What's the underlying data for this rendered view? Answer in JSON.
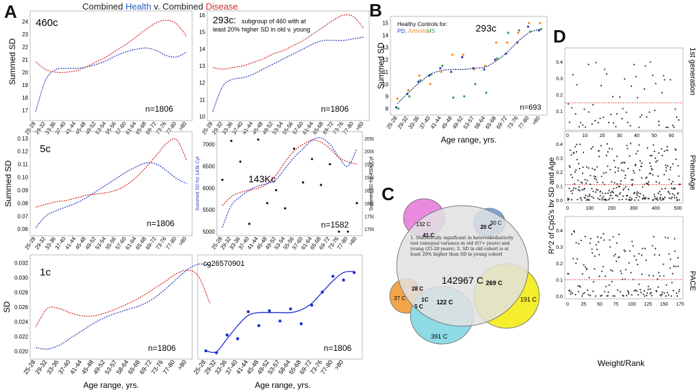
{
  "title": {
    "prefix": "Combined ",
    "health": "Health",
    "mid": " v. Combined ",
    "disease": "Disease"
  },
  "colors": {
    "health": "#2b3fbf",
    "disease": "#d42a2a",
    "ms": "#3aa040",
    "arthritis": "#f08a1c"
  },
  "letters": {
    "a": "A",
    "b": "B",
    "c": "C",
    "d": "D"
  },
  "age_ticks_a": [
    "25-28",
    "29-32",
    "33-36",
    "37-40",
    "41-44",
    "45-48",
    "49-52",
    "53-54",
    "55-56",
    "57-60",
    "61-64",
    "65-68",
    "69-72",
    "73-76",
    "77-80",
    ">80"
  ],
  "age_ticks_b": [
    "25-28",
    "29-32",
    "33-36",
    "37-40",
    "41-44",
    "45-48",
    "49-52",
    "53-57",
    "58-64",
    "65-68",
    "69-72",
    "73-76",
    "77-80",
    ">80"
  ],
  "panels": {
    "p460c": {
      "label": "460c",
      "ylabel": "Summed SD",
      "n": "n=1806",
      "yticks": [
        "17",
        "18",
        "19",
        "20",
        "21",
        "22",
        "23",
        "24"
      ]
    },
    "p293c": {
      "label": "293c:",
      "note1": "subgroup of 460 with at",
      "note2": "least 20% higher SD in old v. young",
      "n": "n=1806",
      "yticks": [
        "10",
        "11",
        "12",
        "13",
        "14",
        "15",
        "16"
      ]
    },
    "p5c": {
      "label": "5c",
      "ylabel": "Summed SD",
      "n": "n=1806",
      "yticks": [
        "0.06",
        "0.07",
        "0.08",
        "0.09",
        "0.10",
        "0.11",
        "0.12",
        "0.13"
      ]
    },
    "p143k": {
      "label": "143Kc",
      "ylabel_left": "Summed SD for 143k Cyt",
      "ylabel_right": "Summed SD for 450k Cyt",
      "n": "n=1582",
      "yticks_left": [
        "5000",
        "5500",
        "6000",
        "6500",
        "7000"
      ],
      "yticks_right": [
        "17000",
        "17500",
        "18000",
        "18500",
        "19000",
        "19500",
        "20000",
        "20500"
      ]
    },
    "p1c": {
      "label": "1c",
      "ylabel": "SD",
      "n": "n=1806",
      "xlabel": "Age range, yrs.",
      "yticks": [
        "0.020",
        "0.022",
        "0.024",
        "0.026",
        "0.028",
        "0.030",
        "0.032"
      ]
    },
    "pcg": {
      "label": "cg26570901",
      "n": "n=1806",
      "xlabel": "Age range, yrs."
    },
    "pB": {
      "label": "293c",
      "ylabel": "Summed SD",
      "xlabel": "Age range, yrs.",
      "n": "n=693",
      "legend_title": "Healthy Controls for:",
      "legend_pd": "PD,",
      "legend_arthritis": "Arthritis,",
      "legend_ms": "MS",
      "yticks": [
        "8",
        "9",
        "10",
        "11",
        "12",
        "13",
        "14",
        "15"
      ]
    }
  },
  "chart_data": [
    {
      "type": "line",
      "panel": "460c",
      "ylim": [
        16.5,
        24.5
      ],
      "series": [
        {
          "name": "Health",
          "values": [
            16.9,
            19.4,
            20.2,
            20.3,
            20.3,
            20.4,
            20.6,
            20.9,
            21.3,
            21.6,
            21.8,
            21.9,
            21.7,
            21.3,
            21.2,
            21.6
          ]
        },
        {
          "name": "Disease",
          "values": [
            20.8,
            20.2,
            20.0,
            20.0,
            20.1,
            20.4,
            20.8,
            21.2,
            21.7,
            22.2,
            22.8,
            23.4,
            23.9,
            24.1,
            23.8,
            22.8
          ]
        }
      ]
    },
    {
      "type": "line",
      "panel": "293c",
      "ylim": [
        10,
        16
      ],
      "series": [
        {
          "name": "Health",
          "values": [
            10.3,
            11.8,
            12.2,
            12.3,
            12.5,
            12.8,
            13.1,
            13.4,
            13.7,
            14.0,
            14.3,
            14.5,
            14.5,
            14.5,
            14.6,
            14.7
          ]
        },
        {
          "name": "Disease",
          "values": [
            12.9,
            12.8,
            12.9,
            13.0,
            13.2,
            13.4,
            13.7,
            13.9,
            14.2,
            14.5,
            14.9,
            15.3,
            15.7,
            16.0,
            15.9,
            15.2
          ]
        }
      ]
    },
    {
      "type": "line",
      "panel": "5c",
      "ylim": [
        0.058,
        0.132
      ],
      "series": [
        {
          "name": "Health",
          "values": [
            0.061,
            0.07,
            0.074,
            0.077,
            0.08,
            0.084,
            0.089,
            0.094,
            0.099,
            0.104,
            0.108,
            0.111,
            0.11,
            0.105,
            0.099,
            0.095
          ]
        },
        {
          "name": "Disease",
          "values": [
            0.077,
            0.079,
            0.081,
            0.082,
            0.084,
            0.086,
            0.087,
            0.088,
            0.09,
            0.094,
            0.1,
            0.108,
            0.117,
            0.126,
            0.129,
            0.113
          ]
        }
      ]
    },
    {
      "type": "line",
      "panel": "143Kc",
      "ylim": [
        5000,
        7200
      ],
      "series": [
        {
          "name": "Health",
          "values": [
            5100,
            5600,
            5800,
            5950,
            6050,
            6100,
            6200,
            6450,
            6700,
            6900,
            7100,
            7150,
            7000,
            6700,
            6500,
            6900
          ]
        },
        {
          "name": "Disease",
          "values": [
            5600,
            5800,
            5900,
            5950,
            6000,
            6100,
            6300,
            6600,
            6850,
            7000,
            7100,
            7050,
            6900,
            6700,
            6600,
            6550
          ]
        }
      ],
      "scatter_right": {
        "ylim": [
          16900,
          20600
        ],
        "values": [
          18900,
          20400,
          19600,
          17200,
          20450,
          18000,
          18500,
          17800,
          20100,
          18800,
          19700,
          18700,
          19500,
          16900,
          16900,
          18000
        ]
      }
    },
    {
      "type": "line",
      "panel": "1c",
      "ylim": [
        0.0195,
        0.0325
      ],
      "series": [
        {
          "name": "Health",
          "values": [
            0.0205,
            0.0203,
            0.0208,
            0.0218,
            0.0228,
            0.0238,
            0.0246,
            0.0252,
            0.0257,
            0.0262,
            0.027,
            0.0282,
            0.0296,
            0.031,
            0.0318,
            0.0317
          ]
        },
        {
          "name": "Disease",
          "values": [
            0.0233,
            0.0258,
            0.0258,
            0.0252,
            0.0248,
            0.0248,
            0.0252,
            0.0258,
            0.0265,
            0.0273,
            0.0283,
            0.0293,
            0.0304,
            0.031,
            0.0302,
            0.0265
          ]
        }
      ]
    },
    {
      "type": "scatter",
      "panel": "cg26570901",
      "ylim": [
        0,
        10
      ],
      "values": [
        0.3,
        0.1,
        2.0,
        1.6,
        4.5,
        3.0,
        4.6,
        3.5,
        4.8,
        3.2,
        5.2,
        6.6,
        8.3,
        7.9,
        8.7
      ],
      "fit": [
        0.3,
        0.2,
        1.6,
        3.0,
        4.1,
        4.4,
        4.4,
        4.4,
        4.4,
        4.7,
        5.4,
        6.6,
        7.8,
        8.7,
        8.8
      ]
    },
    {
      "type": "scatter",
      "panel": "B",
      "ylim": [
        7.8,
        15.2
      ],
      "fit": [
        8.4,
        9.3,
        10.1,
        10.8,
        11.1,
        11.2,
        11.2,
        11.3,
        11.4,
        11.9,
        12.6,
        13.5,
        14.2,
        14.5
      ],
      "pd": [
        8.1,
        9.2,
        10.2,
        10.7,
        11.3,
        11.0,
        12.2,
        11.3,
        11.2,
        12.0,
        12.5,
        13.4,
        14.7,
        14.4
      ],
      "arthritis": [
        8.8,
        9.5,
        10.7,
        10.0,
        11.0,
        12.4,
        12.4,
        11.2,
        11.5,
        13.4,
        13.4,
        14.2,
        15.0,
        15.0
      ],
      "ms": [
        8.0,
        9.0,
        10.3,
        10.8,
        11.5,
        8.9,
        9.0,
        10.0,
        9.3,
        12.1,
        14.2,
        14.4,
        14.3,
        14.5
      ]
    },
    {
      "type": "scatter",
      "panel": "1st generation",
      "ylim": [
        0,
        0.45
      ],
      "xlim": [
        0,
        65
      ],
      "xticks": [
        "0",
        "10",
        "20",
        "30",
        "40",
        "50",
        "60"
      ],
      "yticks": [
        "0.1",
        "0.2",
        "0.3",
        "0.4"
      ],
      "threshold": 0.15,
      "ylabel": "1st generation"
    },
    {
      "type": "scatter",
      "panel": "PhenoAge",
      "ylim": [
        0,
        0.45
      ],
      "xlim": [
        0,
        510
      ],
      "xticks": [
        "0",
        "100",
        "200",
        "300",
        "400",
        "500"
      ],
      "yticks": [
        "0.0",
        "0.1",
        "0.2",
        "0.3",
        "0.4"
      ],
      "threshold": 0.11,
      "ylabel": "PhenoAge"
    },
    {
      "type": "scatter",
      "panel": "PACE",
      "ylim": [
        0,
        0.45
      ],
      "xlim": [
        0,
        175
      ],
      "xticks": [
        "0",
        "25",
        "50",
        "75",
        "100",
        "125",
        "150",
        "175"
      ],
      "yticks": [
        "0.0",
        "0.1",
        "0.2",
        "0.3",
        "0.4"
      ],
      "threshold": 0.1,
      "ylabel": "PACE"
    }
  ],
  "panelD": {
    "ylabel": "R^2 of CpG's bv SD and Age",
    "xlabel": "Weight/Rank",
    "row_labels": [
      "1st generation",
      "PhenoAge",
      "PACE"
    ]
  },
  "venn": {
    "center": "142967 C",
    "note": "1. Statistically significant in heteroskedasticity test (unequal variance in old (67+ years) and young (25-28 years). 2. SD in old cohort is at least 20% higher than SD in young cohort",
    "pink": "132 C",
    "pink_overlap": "41 C",
    "blue": "30 C",
    "blue_overlap": "20 C",
    "orange": "37 C",
    "orange_overlap": "28 C",
    "orange_cyan": "1C",
    "five": "5 C",
    "cyan": "391 C",
    "cyan_overlap": "122 C",
    "yellow": "191 C",
    "yellow_overlap": "269 C"
  }
}
